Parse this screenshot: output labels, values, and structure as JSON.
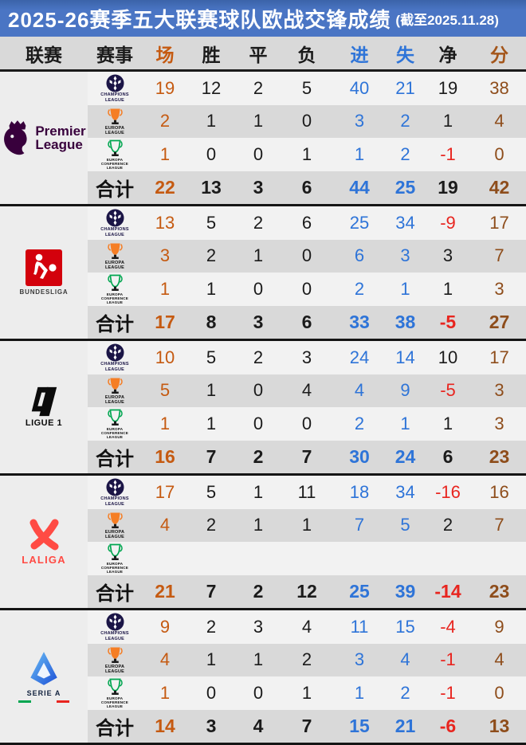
{
  "title": {
    "main": "2025-26赛季五大联赛球队欧战交锋成绩",
    "suffix": "(截至2025.11.28)"
  },
  "labels": {
    "total": "合计"
  },
  "accent_colors": {
    "title_bar_blue": "#4472c4",
    "games_orange": "#c55a11",
    "goals_blue": "#2e74d8",
    "points_brown": "#8e4d1b",
    "negative_red": "#e8251f",
    "row_light": "#f2f2f2",
    "row_dark": "#d9d9d9",
    "separator_black": "#151515"
  },
  "header": {
    "columns": [
      {
        "label": "联赛",
        "tone": "black"
      },
      {
        "label": "赛事",
        "tone": "black"
      },
      {
        "label": "场",
        "tone": "orange"
      },
      {
        "label": "胜",
        "tone": "black"
      },
      {
        "label": "平",
        "tone": "black"
      },
      {
        "label": "负",
        "tone": "black"
      },
      {
        "label": "进",
        "tone": "blue"
      },
      {
        "label": "失",
        "tone": "blue"
      },
      {
        "label": "净",
        "tone": "black"
      },
      {
        "label": "分",
        "tone": "hbrown"
      }
    ]
  },
  "competition_meta": {
    "cl": {
      "name": "UEFA Champions League",
      "caption_lines": [
        "CHAMPIONS",
        "LEAGUE"
      ]
    },
    "el": {
      "name": "UEFA Europa League",
      "caption_lines": [
        "EUROPA",
        "LEAGUE"
      ]
    },
    "uecl": {
      "name": "UEFA Europa Conference League",
      "caption_lines": [
        "EUROPA",
        "CONFERENCE",
        "LEAGUE"
      ]
    }
  },
  "leagues": [
    {
      "id": "premier-league",
      "name": "Premier League",
      "logo_lines": [
        "Premier",
        "League"
      ],
      "rows": [
        {
          "competition": "cl",
          "values": [
            "19",
            "12",
            "2",
            "5",
            "40",
            "21",
            "19",
            "38"
          ]
        },
        {
          "competition": "el",
          "values": [
            "2",
            "1",
            "1",
            "0",
            "3",
            "2",
            "1",
            "4"
          ]
        },
        {
          "competition": "uecl",
          "values": [
            "1",
            "0",
            "0",
            "1",
            "1",
            "2",
            "-1",
            "0"
          ]
        }
      ],
      "total": [
        "22",
        "13",
        "3",
        "6",
        "44",
        "25",
        "19",
        "42"
      ]
    },
    {
      "id": "bundesliga",
      "name": "Bundesliga",
      "logo_lines": [
        "BUNDESLIGA"
      ],
      "rows": [
        {
          "competition": "cl",
          "values": [
            "13",
            "5",
            "2",
            "6",
            "25",
            "34",
            "-9",
            "17"
          ]
        },
        {
          "competition": "el",
          "values": [
            "3",
            "2",
            "1",
            "0",
            "6",
            "3",
            "3",
            "7"
          ]
        },
        {
          "competition": "uecl",
          "values": [
            "1",
            "1",
            "0",
            "0",
            "2",
            "1",
            "1",
            "3"
          ]
        }
      ],
      "total": [
        "17",
        "8",
        "3",
        "6",
        "33",
        "38",
        "-5",
        "27"
      ]
    },
    {
      "id": "ligue-1",
      "name": "Ligue 1",
      "logo_lines": [
        "LIGUE 1"
      ],
      "rows": [
        {
          "competition": "cl",
          "values": [
            "10",
            "5",
            "2",
            "3",
            "24",
            "14",
            "10",
            "17"
          ]
        },
        {
          "competition": "el",
          "values": [
            "5",
            "1",
            "0",
            "4",
            "4",
            "9",
            "-5",
            "3"
          ]
        },
        {
          "competition": "uecl",
          "values": [
            "1",
            "1",
            "0",
            "0",
            "2",
            "1",
            "1",
            "3"
          ]
        }
      ],
      "total": [
        "16",
        "7",
        "2",
        "7",
        "30",
        "24",
        "6",
        "23"
      ]
    },
    {
      "id": "laliga",
      "name": "LaLiga",
      "logo_lines": [
        "LALIGA"
      ],
      "rows": [
        {
          "competition": "cl",
          "values": [
            "17",
            "5",
            "1",
            "11",
            "18",
            "34",
            "-16",
            "16"
          ]
        },
        {
          "competition": "el",
          "values": [
            "4",
            "2",
            "1",
            "1",
            "7",
            "5",
            "2",
            "7"
          ]
        },
        {
          "competition": "uecl",
          "values": [
            "",
            "",
            "",
            "",
            "",
            "",
            "",
            ""
          ]
        }
      ],
      "total": [
        "21",
        "7",
        "2",
        "12",
        "25",
        "39",
        "-14",
        "23"
      ]
    },
    {
      "id": "serie-a",
      "name": "Serie A",
      "logo_lines": [
        "SERIE A"
      ],
      "rows": [
        {
          "competition": "cl",
          "values": [
            "9",
            "2",
            "3",
            "4",
            "11",
            "15",
            "-4",
            "9"
          ]
        },
        {
          "competition": "el",
          "values": [
            "4",
            "1",
            "1",
            "2",
            "3",
            "4",
            "-1",
            "4"
          ]
        },
        {
          "competition": "uecl",
          "values": [
            "1",
            "0",
            "0",
            "1",
            "1",
            "2",
            "-1",
            "0"
          ]
        }
      ],
      "total": [
        "14",
        "3",
        "4",
        "7",
        "15",
        "21",
        "-6",
        "13"
      ]
    }
  ],
  "chart_data": {
    "type": "table",
    "title": "2025-26赛季五大联赛球队欧战交锋成绩 (截至2025.11.28)",
    "columns": [
      "联赛",
      "赛事",
      "场",
      "胜",
      "平",
      "负",
      "进",
      "失",
      "净",
      "分"
    ],
    "rows": [
      [
        "Premier League",
        "Champions League",
        19,
        12,
        2,
        5,
        40,
        21,
        19,
        38
      ],
      [
        "Premier League",
        "Europa League",
        2,
        1,
        1,
        0,
        3,
        2,
        1,
        4
      ],
      [
        "Premier League",
        "Conference League",
        1,
        0,
        0,
        1,
        1,
        2,
        -1,
        0
      ],
      [
        "Premier League",
        "合计",
        22,
        13,
        3,
        6,
        44,
        25,
        19,
        42
      ],
      [
        "Bundesliga",
        "Champions League",
        13,
        5,
        2,
        6,
        25,
        34,
        -9,
        17
      ],
      [
        "Bundesliga",
        "Europa League",
        3,
        2,
        1,
        0,
        6,
        3,
        3,
        7
      ],
      [
        "Bundesliga",
        "Conference League",
        1,
        1,
        0,
        0,
        2,
        1,
        1,
        3
      ],
      [
        "Bundesliga",
        "合计",
        17,
        8,
        3,
        6,
        33,
        38,
        -5,
        27
      ],
      [
        "Ligue 1",
        "Champions League",
        10,
        5,
        2,
        3,
        24,
        14,
        10,
        17
      ],
      [
        "Ligue 1",
        "Europa League",
        5,
        1,
        0,
        4,
        4,
        9,
        -5,
        3
      ],
      [
        "Ligue 1",
        "Conference League",
        1,
        1,
        0,
        0,
        2,
        1,
        1,
        3
      ],
      [
        "Ligue 1",
        "合计",
        16,
        7,
        2,
        7,
        30,
        24,
        6,
        23
      ],
      [
        "LaLiga",
        "Champions League",
        17,
        5,
        1,
        11,
        18,
        34,
        -16,
        16
      ],
      [
        "LaLiga",
        "Europa League",
        4,
        2,
        1,
        1,
        7,
        5,
        2,
        7
      ],
      [
        "LaLiga",
        "Conference League",
        null,
        null,
        null,
        null,
        null,
        null,
        null,
        null
      ],
      [
        "LaLiga",
        "合计",
        21,
        7,
        2,
        12,
        25,
        39,
        -14,
        23
      ],
      [
        "Serie A",
        "Champions League",
        9,
        2,
        3,
        4,
        11,
        15,
        -4,
        9
      ],
      [
        "Serie A",
        "Europa League",
        4,
        1,
        1,
        2,
        3,
        4,
        -1,
        4
      ],
      [
        "Serie A",
        "Conference League",
        1,
        0,
        0,
        1,
        1,
        2,
        -1,
        0
      ],
      [
        "Serie A",
        "合计",
        14,
        3,
        4,
        7,
        15,
        21,
        -6,
        13
      ]
    ]
  }
}
